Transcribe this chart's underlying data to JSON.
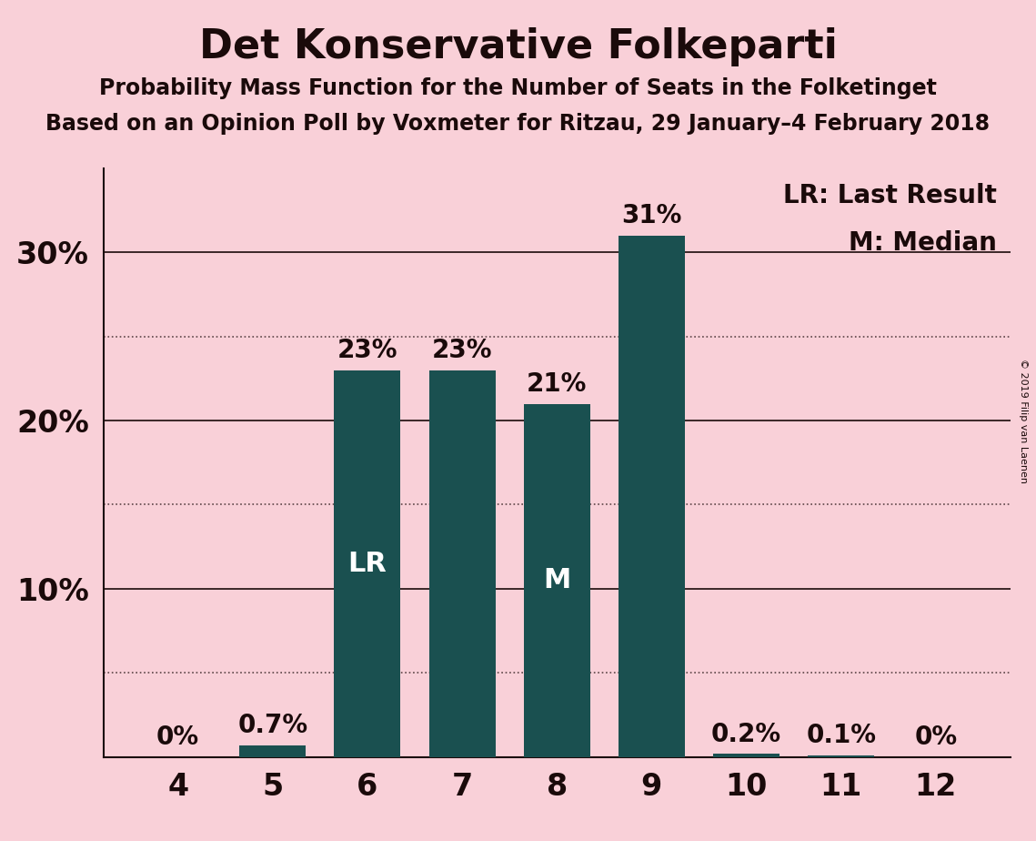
{
  "title": "Det Konservative Folkeparti",
  "subtitle1": "Probability Mass Function for the Number of Seats in the Folketinget",
  "subtitle2": "Based on an Opinion Poll by Voxmeter for Ritzau, 29 January–4 February 2018",
  "copyright": "© 2019 Filip van Laenen",
  "categories": [
    4,
    5,
    6,
    7,
    8,
    9,
    10,
    11,
    12
  ],
  "values": [
    0.0,
    0.7,
    23.0,
    23.0,
    21.0,
    31.0,
    0.2,
    0.1,
    0.0
  ],
  "bar_color": "#1a5050",
  "background_color": "#f9d0d8",
  "text_color": "#1a0a0a",
  "bar_labels": [
    "0%",
    "0.7%",
    "23%",
    "23%",
    "21%",
    "31%",
    "0.2%",
    "0.1%",
    "0%"
  ],
  "lr_bar_index": 2,
  "median_bar_index": 4,
  "lr_label": "LR",
  "median_label": "M",
  "legend_lr": "LR: Last Result",
  "legend_m": "M: Median",
  "ylim": [
    0,
    35
  ],
  "solid_yticks": [
    0,
    10,
    20,
    30
  ],
  "solid_ytick_labels": [
    "",
    "10%",
    "20%",
    "30%"
  ],
  "dotted_yticks": [
    5,
    15,
    25
  ],
  "title_fontsize": 32,
  "subtitle_fontsize": 17,
  "bar_label_fontsize": 20,
  "bar_inner_label_fontsize": 22,
  "axis_tick_fontsize": 24,
  "legend_fontsize": 20
}
